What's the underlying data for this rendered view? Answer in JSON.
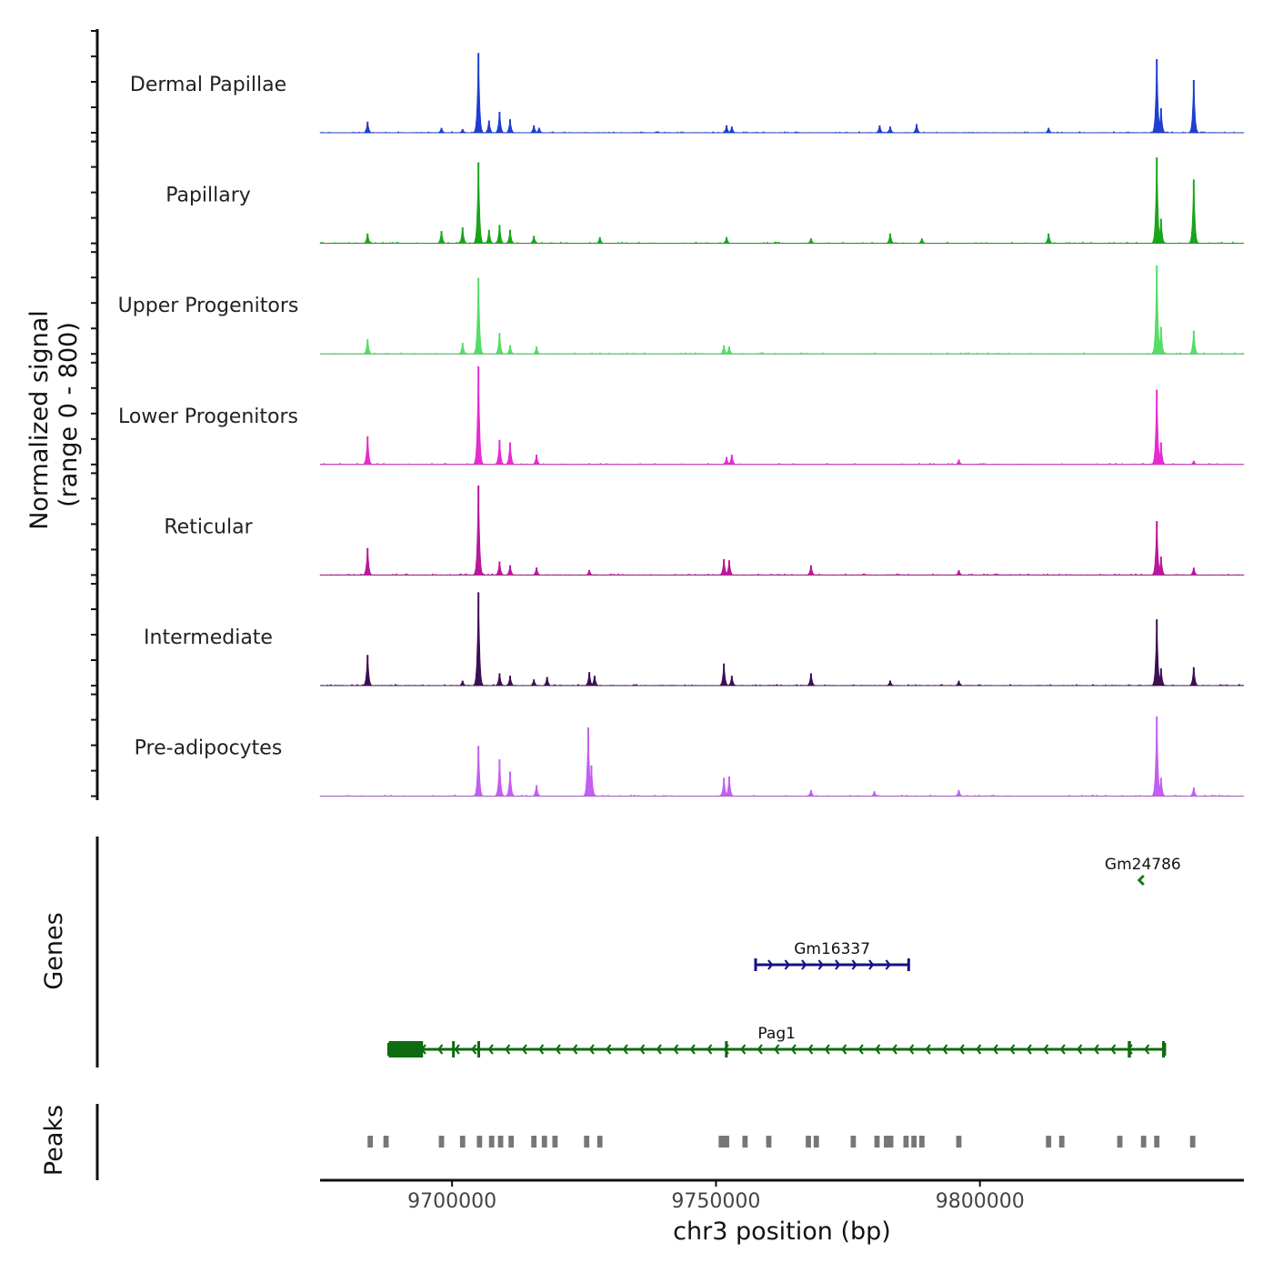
{
  "chart_data": {
    "type": "area",
    "title": "",
    "xlabel": "chr3 position (bp)",
    "ylabel_line1": "Normalized signal",
    "ylabel_line2": "(range 0 - 800)",
    "xlim": [
      9675000,
      9850000
    ],
    "ylim": [
      0,
      800
    ],
    "x_ticks": [
      9700000,
      9750000,
      9800000
    ],
    "x_tick_labels": [
      "9700000",
      "9750000",
      "9800000"
    ],
    "track_titles": {
      "genes": "Genes",
      "peaks": "Peaks"
    },
    "series": [
      {
        "name": "Dermal Papillae",
        "color": "#1f3fd0",
        "peaks": [
          [
            9684000,
            90
          ],
          [
            9698000,
            40
          ],
          [
            9702000,
            30
          ],
          [
            9705000,
            650
          ],
          [
            9707000,
            100
          ],
          [
            9709000,
            170
          ],
          [
            9711000,
            110
          ],
          [
            9715500,
            60
          ],
          [
            9716500,
            40
          ],
          [
            9752000,
            60
          ],
          [
            9753000,
            50
          ],
          [
            9781000,
            60
          ],
          [
            9783000,
            50
          ],
          [
            9788000,
            70
          ],
          [
            9813000,
            40
          ],
          [
            9833500,
            600
          ],
          [
            9834300,
            200
          ],
          [
            9840500,
            430
          ]
        ]
      },
      {
        "name": "Papillary",
        "color": "#1aa51a",
        "peaks": [
          [
            9684000,
            80
          ],
          [
            9698000,
            100
          ],
          [
            9702000,
            130
          ],
          [
            9705000,
            660
          ],
          [
            9707000,
            110
          ],
          [
            9709000,
            150
          ],
          [
            9711000,
            110
          ],
          [
            9715500,
            60
          ],
          [
            9728000,
            50
          ],
          [
            9752000,
            50
          ],
          [
            9768000,
            40
          ],
          [
            9783000,
            80
          ],
          [
            9789000,
            40
          ],
          [
            9813000,
            80
          ],
          [
            9833500,
            700
          ],
          [
            9834300,
            200
          ],
          [
            9840500,
            520
          ]
        ]
      },
      {
        "name": "Upper Progenitors",
        "color": "#55dd66",
        "peaks": [
          [
            9684000,
            120
          ],
          [
            9702000,
            90
          ],
          [
            9705000,
            620
          ],
          [
            9709000,
            170
          ],
          [
            9711000,
            70
          ],
          [
            9716000,
            60
          ],
          [
            9751500,
            70
          ],
          [
            9752500,
            60
          ],
          [
            9833500,
            720
          ],
          [
            9834300,
            220
          ],
          [
            9840500,
            190
          ]
        ]
      },
      {
        "name": "Lower Progenitors",
        "color": "#e62cd0",
        "peaks": [
          [
            9684000,
            230
          ],
          [
            9705000,
            800
          ],
          [
            9709000,
            200
          ],
          [
            9711000,
            180
          ],
          [
            9716000,
            80
          ],
          [
            9752000,
            60
          ],
          [
            9753000,
            80
          ],
          [
            9796000,
            40
          ],
          [
            9833500,
            610
          ],
          [
            9834300,
            180
          ],
          [
            9840500,
            30
          ]
        ]
      },
      {
        "name": "Reticular",
        "color": "#b8189a",
        "peaks": [
          [
            9684000,
            220
          ],
          [
            9705000,
            730
          ],
          [
            9709000,
            110
          ],
          [
            9711000,
            80
          ],
          [
            9716000,
            60
          ],
          [
            9726000,
            40
          ],
          [
            9751500,
            130
          ],
          [
            9752500,
            120
          ],
          [
            9768000,
            80
          ],
          [
            9796000,
            40
          ],
          [
            9833500,
            440
          ],
          [
            9834300,
            150
          ],
          [
            9840500,
            60
          ]
        ]
      },
      {
        "name": "Intermediate",
        "color": "#3d0f55",
        "peaks": [
          [
            9684000,
            250
          ],
          [
            9702000,
            40
          ],
          [
            9705000,
            760
          ],
          [
            9709000,
            100
          ],
          [
            9711000,
            80
          ],
          [
            9715500,
            50
          ],
          [
            9718000,
            70
          ],
          [
            9726000,
            110
          ],
          [
            9727000,
            80
          ],
          [
            9751500,
            180
          ],
          [
            9753000,
            80
          ],
          [
            9768000,
            100
          ],
          [
            9783000,
            40
          ],
          [
            9796000,
            40
          ],
          [
            9833500,
            540
          ],
          [
            9834300,
            140
          ],
          [
            9840500,
            150
          ]
        ]
      },
      {
        "name": "Pre-adipocytes",
        "color": "#c25ff0",
        "peaks": [
          [
            9705000,
            410
          ],
          [
            9709000,
            300
          ],
          [
            9711000,
            200
          ],
          [
            9716000,
            90
          ],
          [
            9725800,
            560
          ],
          [
            9726400,
            250
          ],
          [
            9751500,
            150
          ],
          [
            9752500,
            160
          ],
          [
            9768000,
            50
          ],
          [
            9780000,
            40
          ],
          [
            9796000,
            50
          ],
          [
            9833500,
            650
          ],
          [
            9834300,
            150
          ],
          [
            9840500,
            70
          ]
        ]
      }
    ],
    "genes": [
      {
        "name": "Gm24786",
        "color": "#1a7a1a",
        "start": 9830500,
        "end": 9831200,
        "strand": "-",
        "row": 0
      },
      {
        "name": "Gm16337",
        "color": "#12128a",
        "start": 9757500,
        "end": 9786500,
        "strand": "+",
        "row": 1
      },
      {
        "name": "Pag1",
        "color": "#0f6b0f",
        "start": 9688000,
        "end": 9835000,
        "strand": "-",
        "row": 2,
        "exons": [
          [
            9688000,
            9694500
          ],
          [
            9700000,
            9700400
          ],
          [
            9704800,
            9705100
          ],
          [
            9751700,
            9752100
          ],
          [
            9828000,
            9828600
          ],
          [
            9834500,
            9835000
          ]
        ]
      }
    ],
    "peaks_track": [
      [
        9684000,
        9685000
      ],
      [
        9687000,
        9688000
      ],
      [
        9697500,
        9698500
      ],
      [
        9701500,
        9702500
      ],
      [
        9704700,
        9705700
      ],
      [
        9707000,
        9708000
      ],
      [
        9708700,
        9709700
      ],
      [
        9710700,
        9711700
      ],
      [
        9715000,
        9716000
      ],
      [
        9717000,
        9718000
      ],
      [
        9719000,
        9720000
      ],
      [
        9725000,
        9726000
      ],
      [
        9727500,
        9728500
      ],
      [
        9750500,
        9752500
      ],
      [
        9755000,
        9756000
      ],
      [
        9759500,
        9760500
      ],
      [
        9767000,
        9768000
      ],
      [
        9768500,
        9769500
      ],
      [
        9775500,
        9776500
      ],
      [
        9780000,
        9781000
      ],
      [
        9781800,
        9783600
      ],
      [
        9785500,
        9786500
      ],
      [
        9787000,
        9788000
      ],
      [
        9788500,
        9789500
      ],
      [
        9795500,
        9796500
      ],
      [
        9812500,
        9813500
      ],
      [
        9815000,
        9816000
      ],
      [
        9826000,
        9827000
      ],
      [
        9830500,
        9831500
      ],
      [
        9833000,
        9834000
      ],
      [
        9839800,
        9840800
      ]
    ],
    "peak_color": "#777777"
  }
}
